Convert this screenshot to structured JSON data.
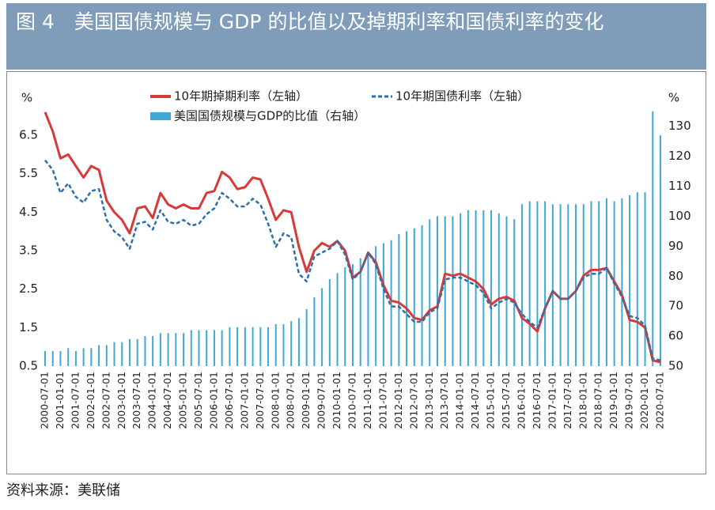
{
  "chart_data": {
    "type": "combo",
    "title": "图 4　美国国债规模与 GDP 的比值以及掉期利率和国债利率的变化",
    "source": "资料来源：美联储",
    "y_label": "%",
    "y2_label": "%",
    "categories": [
      "2000-07-01",
      null,
      "2001-01-01",
      null,
      "2001-07-01",
      null,
      "2002-01-01",
      null,
      "2002-07-01",
      null,
      "2003-01-01",
      null,
      "2003-07-01",
      null,
      "2004-01-01",
      null,
      "2004-07-01",
      null,
      "2005-01-01",
      null,
      "2005-07-01",
      null,
      "2006-01-01",
      null,
      "2006-07-01",
      null,
      "2007-01-01",
      null,
      "2007-07-01",
      null,
      "2008-01-01",
      null,
      "2008-07-01",
      null,
      "2009-01-01",
      null,
      "2009-07-01",
      null,
      "2010-01-01",
      null,
      "2010-07-01",
      null,
      "2011-01-01",
      null,
      "2011-07-01",
      null,
      "2012-01-01",
      null,
      "2012-07-01",
      null,
      "2013-01-01",
      null,
      "2013-07-01",
      null,
      "2014-01-01",
      null,
      "2014-07-01",
      null,
      "2015-01-01",
      null,
      "2015-07-01",
      null,
      "2016-01-01",
      null,
      "2016-07-01",
      null,
      "2017-01-01",
      null,
      "2017-07-01",
      null,
      "2018-01-01",
      null,
      "2018-07-01",
      null,
      "2019-01-01",
      null,
      "2019-07-01",
      null,
      "2020-01-01",
      null,
      "2020-07-01"
    ],
    "series": [
      {
        "name": "10年期掉期利率（左轴）",
        "type": "line",
        "color": "#d63a3a",
        "dashed": false,
        "axis": "y",
        "values": [
          7.1,
          6.6,
          5.9,
          6.0,
          5.7,
          5.4,
          5.7,
          5.6,
          4.8,
          4.5,
          4.3,
          3.95,
          4.6,
          4.65,
          4.35,
          5.0,
          4.7,
          4.6,
          4.7,
          4.6,
          4.6,
          5.0,
          5.05,
          5.55,
          5.4,
          5.1,
          5.15,
          5.4,
          5.35,
          4.85,
          4.3,
          4.55,
          4.5,
          3.6,
          2.95,
          3.5,
          3.7,
          3.6,
          3.75,
          3.5,
          2.8,
          2.95,
          3.45,
          3.2,
          2.6,
          2.2,
          2.15,
          2.0,
          1.75,
          1.7,
          1.95,
          2.05,
          2.9,
          2.85,
          2.9,
          2.8,
          2.7,
          2.5,
          2.1,
          2.25,
          2.3,
          2.2,
          1.75,
          1.6,
          1.4,
          2.0,
          2.45,
          2.25,
          2.25,
          2.45,
          2.85,
          3.0,
          3.0,
          3.05,
          2.7,
          2.35,
          1.7,
          1.65,
          1.5,
          0.65,
          0.6
        ]
      },
      {
        "name": "10年期国债利率（左轴）",
        "type": "line",
        "color": "#2e6fa8",
        "dashed": true,
        "axis": "y",
        "values": [
          5.85,
          5.6,
          5.0,
          5.25,
          4.9,
          4.75,
          5.05,
          5.1,
          4.3,
          4.0,
          3.85,
          3.55,
          4.2,
          4.25,
          4.05,
          4.55,
          4.25,
          4.2,
          4.3,
          4.15,
          4.2,
          4.45,
          4.6,
          5.0,
          4.85,
          4.65,
          4.65,
          4.85,
          4.7,
          4.2,
          3.6,
          3.95,
          3.85,
          2.9,
          2.7,
          3.35,
          3.45,
          3.55,
          3.75,
          3.4,
          2.75,
          2.95,
          3.45,
          3.15,
          2.5,
          2.05,
          2.05,
          1.85,
          1.65,
          1.65,
          1.9,
          2.0,
          2.75,
          2.8,
          2.8,
          2.7,
          2.6,
          2.4,
          2.0,
          2.15,
          2.25,
          2.15,
          1.85,
          1.65,
          1.5,
          2.0,
          2.45,
          2.25,
          2.25,
          2.45,
          2.8,
          2.9,
          2.9,
          3.05,
          2.65,
          2.3,
          1.8,
          1.75,
          1.55,
          0.7,
          0.65
        ]
      },
      {
        "name": "美国国债规模与GDP的比值（右轴）",
        "type": "bar",
        "color": "#3fa9d6",
        "axis": "y2",
        "values": [
          55,
          55,
          55,
          56,
          55,
          56,
          56,
          57,
          57,
          58,
          58,
          59,
          59,
          60,
          60,
          61,
          61,
          61,
          61,
          62,
          62,
          62,
          62,
          62,
          63,
          63,
          63,
          63,
          63,
          63,
          64,
          64,
          65,
          66,
          69,
          73,
          76,
          79,
          81,
          83,
          84,
          86,
          88,
          90,
          91,
          92,
          94,
          95,
          96,
          97,
          99,
          100,
          100,
          100,
          101,
          102,
          102,
          102,
          102,
          101,
          100,
          99,
          104,
          105,
          105,
          105,
          104,
          104,
          104,
          104,
          104,
          105,
          105,
          106,
          105,
          106,
          107,
          108,
          108,
          135,
          127
        ]
      }
    ],
    "ylim": [
      0.5,
      7.2
    ],
    "yticks": [
      0.5,
      1.5,
      2.5,
      3.5,
      4.5,
      5.5,
      6.5
    ],
    "y2lim": [
      50,
      136
    ],
    "y2ticks": [
      50,
      60,
      70,
      80,
      90,
      100,
      110,
      120,
      130
    ],
    "grid": false
  }
}
